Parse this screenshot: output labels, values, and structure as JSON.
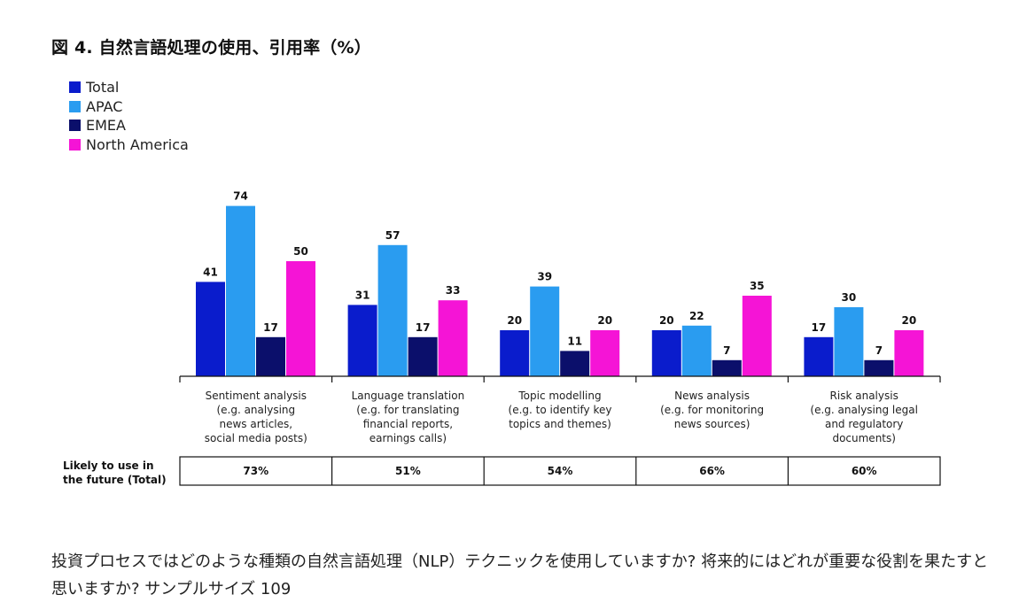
{
  "chart_data": {
    "type": "bar",
    "title": "図 4. 自然言語処理の使用、引用率（%）",
    "categories": [
      [
        "Sentiment analysis",
        "(e.g. analysing",
        "news articles,",
        "social media posts)"
      ],
      [
        "Language translation",
        "(e.g. for translating",
        "financial reports,",
        "earnings calls)"
      ],
      [
        "Topic modelling",
        "(e.g. to identify key",
        "topics and themes)"
      ],
      [
        "News analysis",
        "(e.g. for monitoring",
        "news sources)"
      ],
      [
        "Risk analysis",
        "(e.g. analysing legal",
        "and regulatory",
        "documents)"
      ]
    ],
    "series": [
      {
        "name": "Total",
        "color": "#0a1ccc",
        "values": [
          41,
          31,
          20,
          20,
          17
        ]
      },
      {
        "name": "APAC",
        "color": "#2a9cf0",
        "values": [
          74,
          57,
          39,
          22,
          30
        ]
      },
      {
        "name": "EMEA",
        "color": "#0b0f6b",
        "values": [
          17,
          17,
          11,
          7,
          7
        ]
      },
      {
        "name": "North America",
        "color": "#f514d6",
        "values": [
          50,
          33,
          20,
          35,
          20
        ]
      }
    ],
    "ylim": [
      0,
      80
    ],
    "xlabel": "",
    "ylabel": "",
    "legend_position": "top-left",
    "future_row": {
      "label": [
        "Likely to use in",
        "the future (Total)"
      ],
      "values": [
        "73%",
        "51%",
        "54%",
        "66%",
        "60%"
      ]
    }
  },
  "caption": "投資プロセスではどのような種類の自然言語処理（NLP）テクニックを使用していますか? 将来的にはどれが重要な役割を果たすと思いますか? サンプルサイズ 109"
}
